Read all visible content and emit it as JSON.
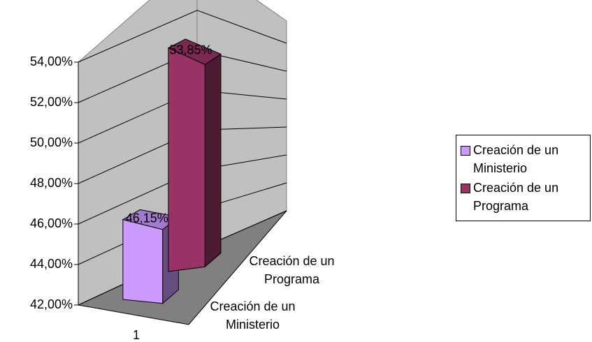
{
  "chart_data": {
    "type": "bar",
    "categories": [
      "1"
    ],
    "series": [
      {
        "name": "Creación de un Ministerio",
        "color": "#cc99ff",
        "values": [
          46.15
        ],
        "value_labels": [
          "46,15%"
        ]
      },
      {
        "name": "Creación de un Programa",
        "color": "#993366",
        "values": [
          53.85
        ],
        "value_labels": [
          "53,85%"
        ]
      }
    ],
    "ylim": [
      42,
      54
    ],
    "yticks": [
      {
        "value": 42,
        "label": "42,00%"
      },
      {
        "value": 44,
        "label": "44,00%"
      },
      {
        "value": 46,
        "label": "46,00%"
      },
      {
        "value": 48,
        "label": "48,00%"
      },
      {
        "value": 50,
        "label": "50,00%"
      },
      {
        "value": 52,
        "label": "52,00%"
      },
      {
        "value": 54,
        "label": "54,00%"
      }
    ],
    "grid": true,
    "legend": "right"
  }
}
